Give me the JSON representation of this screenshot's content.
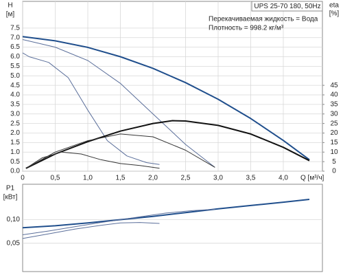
{
  "chart_data": [
    {
      "type": "line",
      "title": "UPS 25-70 180, 50Hz",
      "annotations": [
        "Перекачиваемая жидкость = Вода",
        "Плотность = 998.2 кг/м³"
      ],
      "y_label": "H",
      "y_unit": "[м]",
      "y2_label": "eta",
      "y2_unit": "[%]",
      "x_label": "Q [м³/ч]",
      "grid": true,
      "xlim": [
        0,
        4.6
      ],
      "xticks": [
        0,
        {
          "value": 0.5,
          "label": "0,5"
        },
        {
          "value": 1,
          "label": "1,0"
        },
        {
          "value": 1.5,
          "label": "1,5"
        },
        {
          "value": 2,
          "label": "2,0"
        },
        {
          "value": 2.5,
          "label": "2,5"
        },
        {
          "value": 3,
          "label": "3,0"
        },
        {
          "value": 3.5,
          "label": "3,5"
        },
        {
          "value": 4,
          "label": "4,0"
        }
      ],
      "ylim": [
        0,
        8.9
      ],
      "yticks": [
        {
          "value": 0,
          "label": "0.0"
        },
        0.5,
        {
          "value": 1,
          "label": "1.0"
        },
        1.5,
        {
          "value": 2,
          "label": "2.0"
        },
        2.5,
        {
          "value": 3,
          "label": "3.0"
        },
        3.5,
        {
          "value": 4,
          "label": "4.0"
        },
        4.5,
        {
          "value": 5,
          "label": "5.0"
        },
        5.5,
        {
          "value": 6,
          "label": "6.0"
        },
        6.5,
        {
          "value": 7,
          "label": "7.0"
        },
        7.5
      ],
      "y2lim": [
        0,
        89
      ],
      "y2ticks": [
        0,
        5,
        10,
        15,
        20,
        25,
        30,
        35,
        40,
        45
      ],
      "series": [
        {
          "color": "#1f4e8c",
          "width": 2,
          "x": [
            0,
            0.5,
            1,
            1.5,
            2,
            2.5,
            3,
            3.5,
            4,
            4.4
          ],
          "values": [
            7.05,
            6.83,
            6.49,
            6.0,
            5.39,
            4.64,
            3.77,
            2.76,
            1.61,
            0.6
          ]
        },
        {
          "color": "#5a6e9a",
          "width": 1,
          "x": [
            0,
            0.5,
            1,
            1.5,
            2,
            2.5,
            2.95
          ],
          "values": [
            6.9,
            6.5,
            5.8,
            4.6,
            3.0,
            1.4,
            0.2
          ]
        },
        {
          "color": "#5a6e9a",
          "width": 1,
          "x": [
            0,
            0.1,
            0.4,
            0.7,
            1.0,
            1.3,
            1.6,
            1.9,
            2.1
          ],
          "values": [
            6.2,
            6.0,
            5.7,
            4.9,
            3.2,
            1.6,
            0.8,
            0.45,
            0.35
          ]
        },
        {
          "color": "#111111",
          "width": 2,
          "axis": "y2",
          "x": [
            0.05,
            0.5,
            1,
            1.5,
            2,
            2.3,
            2.5,
            3,
            3.5,
            4,
            4.4
          ],
          "values": [
            1.5,
            9,
            15.5,
            21,
            25,
            26.5,
            26.3,
            24,
            19.5,
            12.5,
            5.5
          ]
        },
        {
          "color": "#333333",
          "width": 1,
          "axis": "y2",
          "x": [
            0.05,
            0.5,
            1,
            1.5,
            2,
            2.5,
            2.95
          ],
          "values": [
            1.5,
            10,
            16,
            19.5,
            18,
            11,
            2
          ]
        },
        {
          "color": "#333333",
          "width": 1,
          "axis": "y2",
          "x": [
            0.05,
            0.3,
            0.6,
            0.9,
            1.2,
            1.5,
            1.8,
            2.1
          ],
          "values": [
            1.5,
            7,
            10,
            9,
            6,
            4,
            3,
            1.5
          ]
        }
      ]
    },
    {
      "type": "line",
      "y_label": "P1",
      "y_unit": "[кВт]",
      "grid": true,
      "xlim": [
        0,
        4.6
      ],
      "ylim": [
        -0.01,
        0.175
      ],
      "yticks": [
        {
          "value": 0.05,
          "label": "0,05"
        },
        {
          "value": 0.1,
          "label": "0,10"
        }
      ],
      "series": [
        {
          "color": "#1f4e8c",
          "width": 2,
          "x": [
            0,
            0.5,
            1,
            1.5,
            2,
            2.5,
            3,
            3.5,
            4,
            4.4
          ],
          "values": [
            0.083,
            0.087,
            0.093,
            0.1,
            0.107,
            0.115,
            0.123,
            0.13,
            0.137,
            0.143
          ]
        },
        {
          "color": "#5a6e9a",
          "width": 1,
          "x": [
            0,
            0.4,
            0.8,
            1.2,
            1.5,
            1.9,
            2.2,
            2.6,
            2.95
          ],
          "values": [
            0.068,
            0.076,
            0.085,
            0.094,
            0.1,
            0.108,
            0.114,
            0.119,
            0.122
          ]
        },
        {
          "color": "#5a6e9a",
          "width": 1,
          "x": [
            0,
            0.4,
            0.8,
            1.2,
            1.5,
            1.8,
            2.1
          ],
          "values": [
            0.06,
            0.07,
            0.08,
            0.088,
            0.093,
            0.094,
            0.092
          ]
        }
      ]
    }
  ]
}
